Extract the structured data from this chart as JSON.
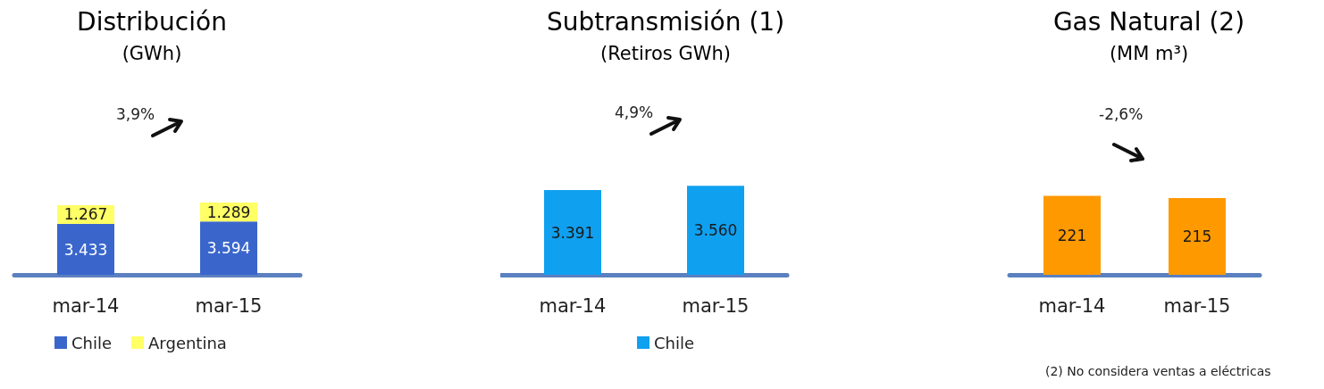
{
  "chart_data": [
    {
      "type": "bar",
      "title": "Distribución",
      "subtitle": "(GWh)",
      "categories": [
        "mar-14",
        "mar-15"
      ],
      "stacked": true,
      "legend": "bottom left",
      "series": [
        {
          "name": "Chile",
          "color": "#3a66cc",
          "values": [
            3433,
            3594
          ],
          "value_labels": [
            "3.433",
            "3.594"
          ]
        },
        {
          "name": "Argentina",
          "color": "#ffff66",
          "values": [
            1267,
            1289
          ],
          "value_labels": [
            "1.267",
            "1.289"
          ]
        }
      ],
      "annotations": [
        "3,9%"
      ]
    },
    {
      "type": "bar",
      "title": "Subtransmisión (1)",
      "subtitle": "(Retiros GWh)",
      "categories": [
        "mar-14",
        "mar-15"
      ],
      "legend": "bottom",
      "series": [
        {
          "name": "Chile",
          "color": "#10a0f0",
          "values": [
            3391,
            3560
          ],
          "value_labels": [
            "3.391",
            "3.560"
          ]
        }
      ],
      "annotations": [
        "4,9%"
      ]
    },
    {
      "type": "bar",
      "title": "Gas Natural (2)",
      "subtitle": "(MM m³)",
      "categories": [
        "mar-14",
        "mar-15"
      ],
      "series": [
        {
          "color": "#ff9900",
          "values": [
            221,
            215
          ],
          "value_labels": [
            "221",
            "215"
          ]
        }
      ],
      "annotations": [
        "-2,6%",
        "(2) No considera ventas a eléctricas"
      ]
    }
  ]
}
